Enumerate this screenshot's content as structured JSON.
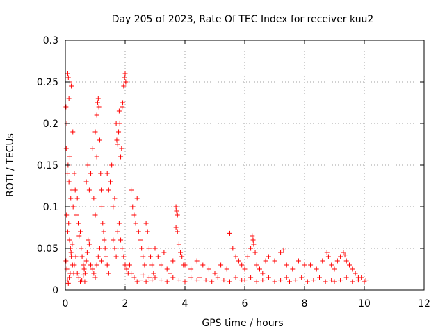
{
  "chart_data": {
    "type": "scatter",
    "title": "Day 205 of 2023, Rate Of TEC Index for receiver kuu2",
    "xlabel": "GPS time / hours",
    "ylabel": "ROTI / TECUs",
    "xlim": [
      0,
      12
    ],
    "ylim": [
      0,
      0.3
    ],
    "x_ticks": [
      0,
      2,
      4,
      6,
      8,
      10,
      12
    ],
    "x_tick_labels": [
      "0",
      "2",
      "4",
      "6",
      "8",
      "10",
      "12"
    ],
    "y_ticks": [
      0,
      0.05,
      0.1,
      0.15,
      0.2,
      0.25,
      0.3
    ],
    "y_tick_labels": [
      "0",
      "0.05",
      "0.1",
      "0.15",
      "0.2",
      "0.25",
      "0.3"
    ],
    "grid": true,
    "marker": "+",
    "color": "#ff0000",
    "series": [
      {
        "name": "ROTI",
        "points": [
          [
            0.02,
            0.22
          ],
          [
            0.05,
            0.2
          ],
          [
            0.08,
            0.26
          ],
          [
            0.1,
            0.255
          ],
          [
            0.12,
            0.23
          ],
          [
            0.15,
            0.25
          ],
          [
            0.2,
            0.245
          ],
          [
            0.25,
            0.19
          ],
          [
            0.03,
            0.17
          ],
          [
            0.06,
            0.14
          ],
          [
            0.09,
            0.15
          ],
          [
            0.12,
            0.13
          ],
          [
            0.15,
            0.16
          ],
          [
            0.18,
            0.11
          ],
          [
            0.22,
            0.12
          ],
          [
            0.26,
            0.1
          ],
          [
            0.04,
            0.09
          ],
          [
            0.08,
            0.07
          ],
          [
            0.11,
            0.08
          ],
          [
            0.14,
            0.06
          ],
          [
            0.17,
            0.05
          ],
          [
            0.2,
            0.04
          ],
          [
            0.24,
            0.03
          ],
          [
            0.28,
            0.02
          ],
          [
            0.02,
            0.035
          ],
          [
            0.05,
            0.025
          ],
          [
            0.07,
            0.012
          ],
          [
            0.1,
            0.008
          ],
          [
            0.13,
            0.015
          ],
          [
            0.16,
            0.02
          ],
          [
            0.19,
            0.045
          ],
          [
            0.23,
            0.055
          ],
          [
            0.3,
            0.14
          ],
          [
            0.33,
            0.12
          ],
          [
            0.36,
            0.09
          ],
          [
            0.4,
            0.11
          ],
          [
            0.43,
            0.08
          ],
          [
            0.46,
            0.065
          ],
          [
            0.5,
            0.07
          ],
          [
            0.53,
            0.05
          ],
          [
            0.56,
            0.04
          ],
          [
            0.6,
            0.03
          ],
          [
            0.63,
            0.025
          ],
          [
            0.66,
            0.02
          ],
          [
            0.7,
            0.035
          ],
          [
            0.73,
            0.045
          ],
          [
            0.76,
            0.06
          ],
          [
            0.8,
            0.055
          ],
          [
            0.3,
            0.03
          ],
          [
            0.35,
            0.04
          ],
          [
            0.4,
            0.02
          ],
          [
            0.45,
            0.015
          ],
          [
            0.5,
            0.01
          ],
          [
            0.55,
            0.012
          ],
          [
            0.6,
            0.018
          ],
          [
            0.65,
            0.01
          ],
          [
            0.7,
            0.13
          ],
          [
            0.75,
            0.15
          ],
          [
            0.8,
            0.12
          ],
          [
            0.85,
            0.14
          ],
          [
            0.9,
            0.17
          ],
          [
            0.95,
            0.11
          ],
          [
            1.0,
            0.09
          ],
          [
            1.05,
            0.16
          ],
          [
            1.0,
            0.19
          ],
          [
            1.05,
            0.21
          ],
          [
            1.08,
            0.225
          ],
          [
            1.1,
            0.23
          ],
          [
            1.12,
            0.22
          ],
          [
            1.15,
            0.18
          ],
          [
            1.18,
            0.14
          ],
          [
            1.2,
            0.12
          ],
          [
            1.22,
            0.1
          ],
          [
            1.25,
            0.08
          ],
          [
            1.28,
            0.07
          ],
          [
            1.3,
            0.06
          ],
          [
            1.33,
            0.05
          ],
          [
            1.36,
            0.04
          ],
          [
            1.4,
            0.03
          ],
          [
            1.45,
            0.02
          ],
          [
            0.85,
            0.03
          ],
          [
            0.9,
            0.025
          ],
          [
            0.95,
            0.02
          ],
          [
            1.0,
            0.015
          ],
          [
            1.05,
            0.03
          ],
          [
            1.1,
            0.04
          ],
          [
            1.15,
            0.05
          ],
          [
            1.2,
            0.035
          ],
          [
            1.4,
            0.14
          ],
          [
            1.45,
            0.12
          ],
          [
            1.5,
            0.13
          ],
          [
            1.55,
            0.15
          ],
          [
            1.6,
            0.1
          ],
          [
            1.65,
            0.11
          ],
          [
            1.7,
            0.2
          ],
          [
            1.72,
            0.18
          ],
          [
            1.75,
            0.175
          ],
          [
            1.78,
            0.19
          ],
          [
            1.8,
            0.215
          ],
          [
            1.82,
            0.2
          ],
          [
            1.85,
            0.16
          ],
          [
            1.88,
            0.17
          ],
          [
            1.9,
            0.22
          ],
          [
            1.92,
            0.225
          ],
          [
            1.95,
            0.245
          ],
          [
            1.98,
            0.255
          ],
          [
            2.0,
            0.26
          ],
          [
            2.02,
            0.25
          ],
          [
            1.6,
            0.06
          ],
          [
            1.65,
            0.05
          ],
          [
            1.7,
            0.04
          ],
          [
            1.75,
            0.07
          ],
          [
            1.8,
            0.08
          ],
          [
            1.85,
            0.06
          ],
          [
            1.9,
            0.05
          ],
          [
            1.95,
            0.04
          ],
          [
            2.0,
            0.03
          ],
          [
            2.05,
            0.025
          ],
          [
            2.1,
            0.02
          ],
          [
            2.15,
            0.03
          ],
          [
            2.2,
            0.12
          ],
          [
            2.25,
            0.1
          ],
          [
            2.3,
            0.09
          ],
          [
            2.35,
            0.08
          ],
          [
            2.4,
            0.11
          ],
          [
            2.45,
            0.07
          ],
          [
            2.5,
            0.06
          ],
          [
            2.55,
            0.05
          ],
          [
            2.6,
            0.04
          ],
          [
            2.65,
            0.03
          ],
          [
            2.7,
            0.08
          ],
          [
            2.75,
            0.07
          ],
          [
            2.8,
            0.05
          ],
          [
            2.85,
            0.04
          ],
          [
            2.9,
            0.03
          ],
          [
            2.95,
            0.02
          ],
          [
            2.2,
            0.02
          ],
          [
            2.3,
            0.015
          ],
          [
            2.4,
            0.01
          ],
          [
            2.5,
            0.012
          ],
          [
            2.6,
            0.018
          ],
          [
            2.7,
            0.01
          ],
          [
            2.8,
            0.015
          ],
          [
            2.9,
            0.012
          ],
          [
            3.0,
            0.05
          ],
          [
            3.1,
            0.04
          ],
          [
            3.2,
            0.03
          ],
          [
            3.3,
            0.045
          ],
          [
            3.4,
            0.025
          ],
          [
            3.5,
            0.02
          ],
          [
            3.6,
            0.035
          ],
          [
            3.7,
            0.1
          ],
          [
            3.72,
            0.095
          ],
          [
            3.75,
            0.09
          ],
          [
            3.7,
            0.075
          ],
          [
            3.75,
            0.07
          ],
          [
            3.8,
            0.055
          ],
          [
            3.85,
            0.045
          ],
          [
            3.9,
            0.04
          ],
          [
            3.95,
            0.03
          ],
          [
            3.0,
            0.015
          ],
          [
            3.2,
            0.012
          ],
          [
            3.4,
            0.01
          ],
          [
            3.6,
            0.015
          ],
          [
            3.8,
            0.012
          ],
          [
            4.0,
            0.01
          ],
          [
            4.2,
            0.015
          ],
          [
            4.4,
            0.012
          ],
          [
            4.0,
            0.03
          ],
          [
            4.2,
            0.025
          ],
          [
            4.4,
            0.035
          ],
          [
            4.6,
            0.03
          ],
          [
            4.8,
            0.025
          ],
          [
            5.0,
            0.02
          ],
          [
            5.2,
            0.03
          ],
          [
            5.4,
            0.025
          ],
          [
            4.5,
            0.015
          ],
          [
            4.7,
            0.012
          ],
          [
            4.9,
            0.01
          ],
          [
            5.1,
            0.015
          ],
          [
            5.3,
            0.012
          ],
          [
            5.5,
            0.01
          ],
          [
            5.7,
            0.015
          ],
          [
            5.9,
            0.012
          ],
          [
            5.5,
            0.068
          ],
          [
            5.6,
            0.05
          ],
          [
            5.7,
            0.04
          ],
          [
            5.8,
            0.035
          ],
          [
            5.9,
            0.03
          ],
          [
            6.0,
            0.025
          ],
          [
            6.1,
            0.04
          ],
          [
            6.2,
            0.05
          ],
          [
            6.25,
            0.065
          ],
          [
            6.28,
            0.06
          ],
          [
            6.3,
            0.055
          ],
          [
            6.35,
            0.045
          ],
          [
            6.4,
            0.03
          ],
          [
            6.5,
            0.025
          ],
          [
            6.6,
            0.02
          ],
          [
            6.7,
            0.035
          ],
          [
            6.0,
            0.012
          ],
          [
            6.2,
            0.015
          ],
          [
            6.4,
            0.01
          ],
          [
            6.6,
            0.012
          ],
          [
            6.8,
            0.015
          ],
          [
            7.0,
            0.01
          ],
          [
            7.2,
            0.012
          ],
          [
            7.4,
            0.015
          ],
          [
            6.8,
            0.04
          ],
          [
            7.0,
            0.035
          ],
          [
            7.2,
            0.045
          ],
          [
            7.3,
            0.048
          ],
          [
            7.4,
            0.03
          ],
          [
            7.6,
            0.025
          ],
          [
            7.8,
            0.035
          ],
          [
            8.0,
            0.03
          ],
          [
            7.5,
            0.01
          ],
          [
            7.7,
            0.012
          ],
          [
            7.9,
            0.015
          ],
          [
            8.1,
            0.01
          ],
          [
            8.3,
            0.012
          ],
          [
            8.5,
            0.015
          ],
          [
            8.7,
            0.01
          ],
          [
            8.9,
            0.012
          ],
          [
            8.2,
            0.03
          ],
          [
            8.4,
            0.025
          ],
          [
            8.6,
            0.035
          ],
          [
            8.75,
            0.045
          ],
          [
            8.8,
            0.04
          ],
          [
            8.9,
            0.03
          ],
          [
            9.0,
            0.025
          ],
          [
            9.1,
            0.035
          ],
          [
            9.2,
            0.04
          ],
          [
            9.3,
            0.045
          ],
          [
            9.35,
            0.042
          ],
          [
            9.4,
            0.035
          ],
          [
            9.5,
            0.03
          ],
          [
            9.6,
            0.025
          ],
          [
            9.7,
            0.02
          ],
          [
            9.8,
            0.015
          ],
          [
            9.0,
            0.01
          ],
          [
            9.2,
            0.012
          ],
          [
            9.4,
            0.015
          ],
          [
            9.6,
            0.01
          ],
          [
            9.8,
            0.012
          ],
          [
            9.9,
            0.015
          ],
          [
            10.0,
            0.01
          ],
          [
            10.05,
            0.012
          ]
        ]
      }
    ]
  }
}
